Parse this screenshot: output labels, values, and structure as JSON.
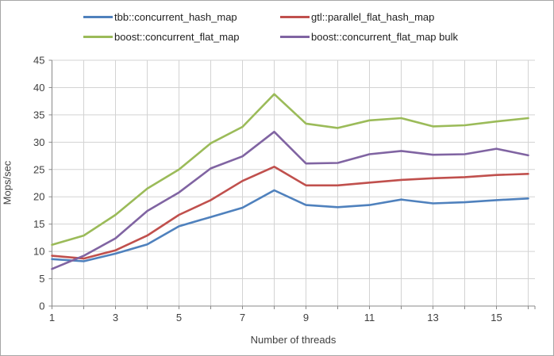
{
  "legend": {
    "items": [
      {
        "label": "tbb::concurrent_hash_map",
        "color": "#4f81bd"
      },
      {
        "label": "gtl::parallel_flat_hash_map",
        "color": "#c0504d"
      },
      {
        "label": "boost::concurrent_flat_map",
        "color": "#9bbb59"
      },
      {
        "label": "boost::concurrent_flat_map bulk",
        "color": "#8064a2"
      }
    ]
  },
  "chart_data": {
    "type": "line",
    "title": "",
    "xlabel": "Number of threads",
    "ylabel": "Mops/sec",
    "x": [
      1,
      2,
      3,
      4,
      5,
      6,
      7,
      8,
      9,
      10,
      11,
      12,
      13,
      14,
      15,
      16
    ],
    "series": [
      {
        "name": "tbb::concurrent_hash_map",
        "color": "#4f81bd",
        "values": [
          8.6,
          8.2,
          9.6,
          11.3,
          14.6,
          16.3,
          18.0,
          21.2,
          18.5,
          18.1,
          18.5,
          19.5,
          18.8,
          19.0,
          19.4,
          19.7
        ]
      },
      {
        "name": "gtl::parallel_flat_hash_map",
        "color": "#c0504d",
        "values": [
          9.2,
          8.7,
          10.2,
          12.9,
          16.7,
          19.4,
          22.9,
          25.5,
          22.1,
          22.1,
          22.6,
          23.1,
          23.4,
          23.6,
          24.0,
          24.2
        ]
      },
      {
        "name": "boost::concurrent_flat_map",
        "color": "#9bbb59",
        "values": [
          11.2,
          12.9,
          16.7,
          21.5,
          25.0,
          29.8,
          32.8,
          38.8,
          33.4,
          32.6,
          34.0,
          34.4,
          32.9,
          33.1,
          33.8,
          34.4
        ]
      },
      {
        "name": "boost::concurrent_flat_map bulk",
        "color": "#8064a2",
        "values": [
          6.8,
          9.2,
          12.4,
          17.4,
          20.8,
          25.2,
          27.4,
          31.9,
          26.1,
          26.2,
          27.8,
          28.4,
          27.7,
          27.8,
          28.8,
          27.6
        ]
      }
    ],
    "ylim": [
      0,
      45
    ],
    "ytick_step": 5,
    "yticks": [
      0,
      5,
      10,
      15,
      20,
      25,
      30,
      35,
      40,
      45
    ],
    "xticks_labeled": [
      1,
      3,
      5,
      7,
      9,
      11,
      13,
      15
    ],
    "grid": true,
    "legend_position": "top",
    "style": {
      "grid_color": "#d3d3d3",
      "axis_color": "#898989",
      "tick_text_color": "#3f3f3f",
      "background": "#ffffff",
      "border_color": "#a6a6a6"
    }
  }
}
